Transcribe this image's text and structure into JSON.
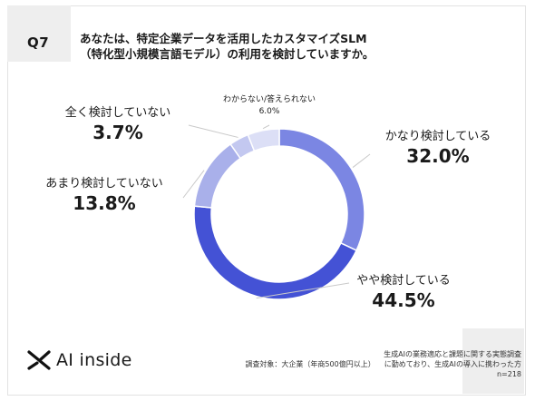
{
  "question": {
    "id": "Q7",
    "line1": "あなたは、特定企業データを活用したカスタマイズSLM",
    "line2": "（特化型小規模言語モデル）の利用を検討していますか。"
  },
  "chart_data": {
    "type": "pie",
    "donut": true,
    "categories": [
      "かなり検討している",
      "やや検討している",
      "あまり検討していない",
      "全く検討していない",
      "わからない/答えられない"
    ],
    "values": [
      32.0,
      44.5,
      13.8,
      3.7,
      6.0
    ],
    "value_labels": [
      "32.0%",
      "44.5%",
      "13.8%",
      "3.7%",
      "6.0%"
    ],
    "colors": [
      "#7b86e3",
      "#4452d5",
      "#a9b0ea",
      "#c3c8f0",
      "#dcdff6"
    ],
    "start_angle_deg": 0,
    "direction": "clockwise"
  },
  "footer": {
    "logo_text": "AI inside",
    "survey_title": "生成AIの業務適応と課題に関する実態調査",
    "target": "調査対象：大企業（年商500億円以上）",
    "target_detail": "に勤めており、生成AIの導入に携わった方",
    "n": "n=218"
  }
}
